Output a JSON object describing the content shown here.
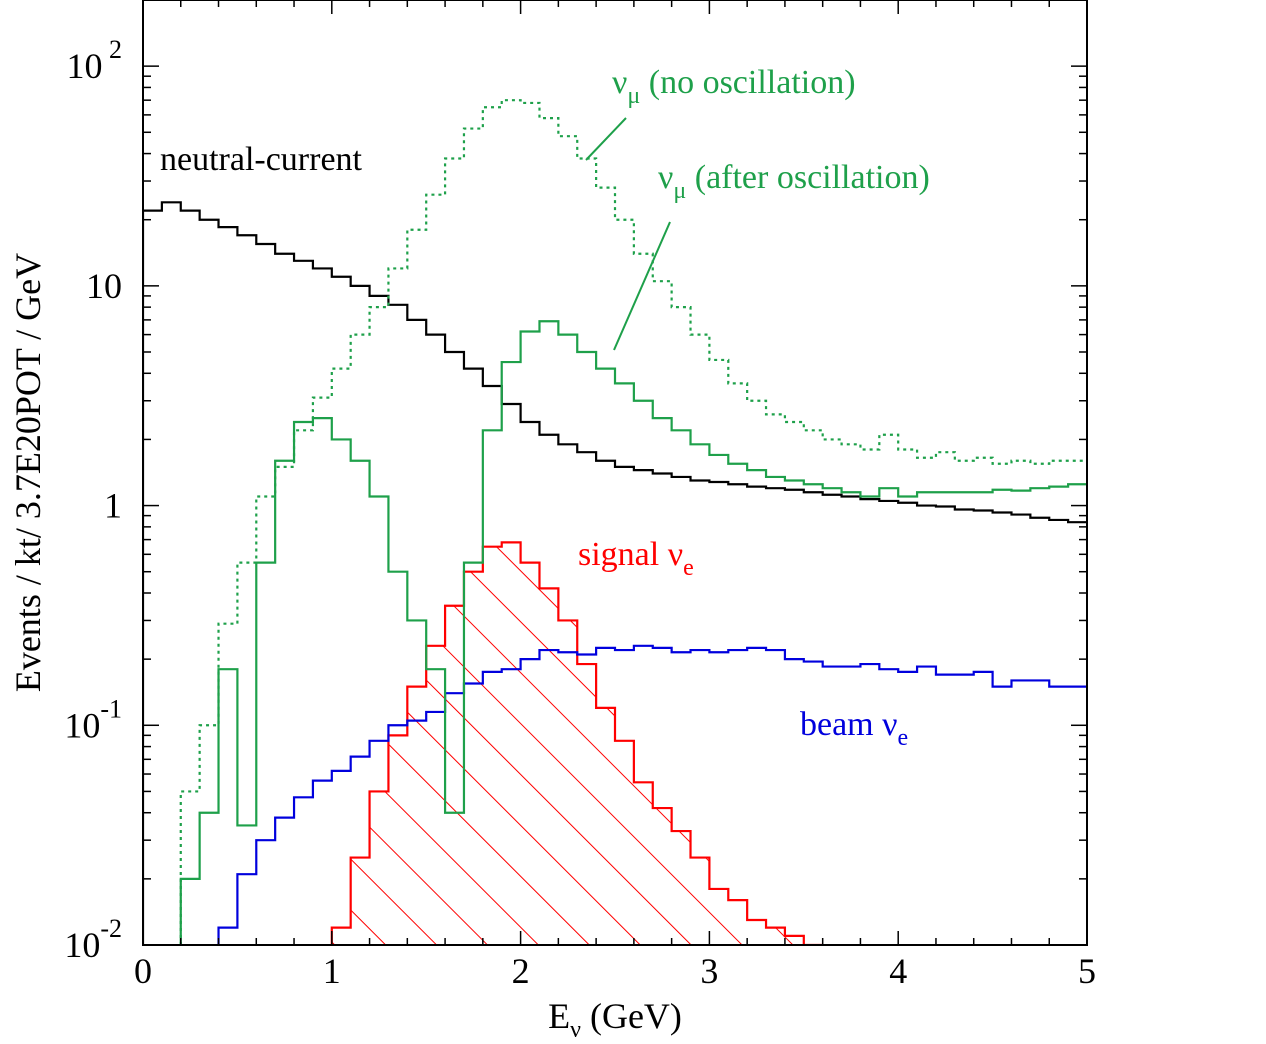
{
  "chart_data": {
    "type": "line",
    "subtype": "step-histogram",
    "xlabel": {
      "main": "E",
      "sub": "ν",
      "tail": " (GeV)"
    },
    "ylabel": "Events / kt/ 3.7E20POT / GeV",
    "xlim": [
      0,
      5
    ],
    "ylim": [
      0.01,
      200
    ],
    "yscale": "log",
    "x_ticks": [
      "0",
      "1",
      "2",
      "3",
      "4",
      "5"
    ],
    "y_ticks": [
      {
        "base": "10",
        "exp": "-2"
      },
      {
        "base": "10",
        "exp": "-1"
      },
      {
        "base": "1",
        "exp": ""
      },
      {
        "base": "10",
        "exp": ""
      },
      {
        "base": "10",
        "exp": " 2"
      }
    ],
    "bin_width": 0.1,
    "bin_edges_start": 0,
    "series": [
      {
        "key": "nc",
        "color": "#000000",
        "dash": "none",
        "values": [
          22,
          24,
          22,
          20,
          18.5,
          17,
          15.5,
          14,
          13,
          12,
          11,
          10,
          9,
          8.2,
          7,
          6,
          5,
          4.2,
          3.5,
          2.9,
          2.4,
          2.1,
          1.9,
          1.75,
          1.6,
          1.5,
          1.45,
          1.4,
          1.35,
          1.3,
          1.28,
          1.25,
          1.22,
          1.2,
          1.18,
          1.15,
          1.12,
          1.1,
          1.07,
          1.05,
          1.03,
          1.0,
          0.99,
          0.96,
          0.95,
          0.93,
          0.91,
          0.88,
          0.86,
          0.84
        ]
      },
      {
        "key": "numu_noosc",
        "color": "#1ea04a",
        "dash": "3,4",
        "values": [
          null,
          null,
          0.05,
          0.1,
          0.29,
          0.55,
          1.1,
          1.5,
          2.2,
          3.1,
          4.2,
          6,
          8,
          12,
          18,
          26,
          38,
          52,
          65,
          70,
          68,
          58,
          48,
          38,
          28,
          20,
          14,
          10.5,
          8,
          6,
          4.6,
          3.6,
          3,
          2.6,
          2.4,
          2.2,
          2.0,
          1.9,
          1.8,
          2.1,
          1.8,
          1.65,
          1.75,
          1.6,
          1.65,
          1.55,
          1.6,
          1.55,
          1.6,
          1.6
        ]
      },
      {
        "key": "numu_osc",
        "color": "#1ea04a",
        "dash": "none",
        "values": [
          null,
          null,
          0.02,
          0.04,
          0.18,
          0.035,
          0.55,
          1.6,
          2.4,
          2.5,
          2.0,
          1.6,
          1.1,
          0.5,
          0.3,
          0.18,
          0.04,
          0.55,
          2.2,
          4.5,
          6.2,
          6.9,
          6.0,
          5.0,
          4.2,
          3.6,
          3.0,
          2.5,
          2.2,
          1.9,
          1.7,
          1.55,
          1.45,
          1.35,
          1.3,
          1.25,
          1.2,
          1.15,
          1.1,
          1.2,
          1.1,
          1.15,
          1.15,
          1.15,
          1.15,
          1.18,
          1.17,
          1.2,
          1.22,
          1.25
        ]
      },
      {
        "key": "beam_nue",
        "color": "#0000dd",
        "dash": "none",
        "values": [
          null,
          null,
          null,
          null,
          0.012,
          0.021,
          0.03,
          0.038,
          0.047,
          0.056,
          0.062,
          0.072,
          0.085,
          0.1,
          0.105,
          0.115,
          0.14,
          0.155,
          0.175,
          0.18,
          0.2,
          0.22,
          0.215,
          0.21,
          0.225,
          0.22,
          0.23,
          0.225,
          0.215,
          0.22,
          0.215,
          0.22,
          0.225,
          0.22,
          0.2,
          0.195,
          0.185,
          0.185,
          0.19,
          0.18,
          0.175,
          0.185,
          0.17,
          0.17,
          0.175,
          0.15,
          0.16,
          0.16,
          0.15,
          0.15
        ]
      },
      {
        "key": "signal_nue",
        "color": "#ff0000",
        "dash": "none",
        "hatched": true,
        "values": [
          null,
          null,
          null,
          null,
          null,
          null,
          null,
          null,
          null,
          null,
          0.012,
          0.025,
          0.05,
          0.09,
          0.15,
          0.23,
          0.35,
          0.5,
          0.65,
          0.68,
          0.55,
          0.42,
          0.3,
          0.19,
          0.12,
          0.085,
          0.055,
          0.042,
          0.033,
          0.025,
          0.018,
          0.016,
          0.013,
          0.012,
          0.011,
          0.01
        ]
      }
    ],
    "annotations": [
      {
        "key": "nc_label",
        "text": "neutral-current",
        "color": "#000000"
      },
      {
        "key": "numu_noosc_label",
        "main": "ν",
        "sub": "μ",
        "tail": " (no oscillation)",
        "color": "#1ea04a"
      },
      {
        "key": "numu_osc_label",
        "main": "ν",
        "sub": "μ",
        "tail": " (after oscillation)",
        "color": "#1ea04a"
      },
      {
        "key": "signal_label",
        "main": "signal ν",
        "sub": "e",
        "tail": "",
        "color": "#ff0000"
      },
      {
        "key": "beam_label",
        "main": "beam ν",
        "sub": "e",
        "tail": "",
        "color": "#0000dd"
      }
    ],
    "grid": false,
    "legend": "none"
  }
}
